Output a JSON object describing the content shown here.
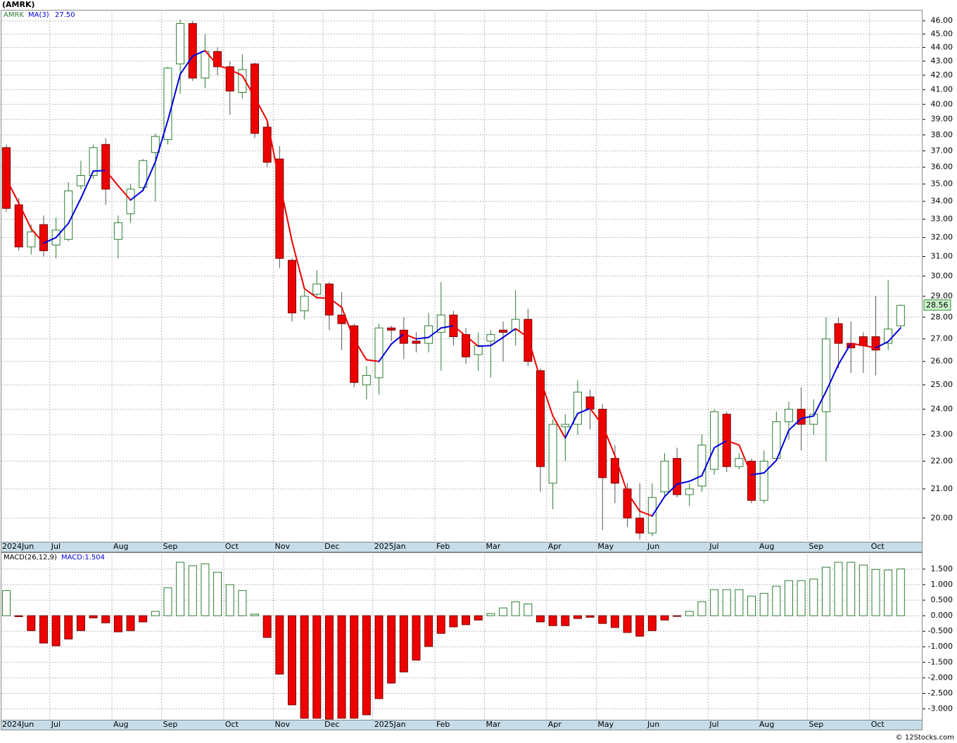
{
  "chart_data": [
    {
      "type": "candlestick",
      "title": "(AMRK)",
      "ticker": "AMRK",
      "categories": [
        "2024Jun",
        null,
        null,
        null,
        "Jul",
        null,
        null,
        null,
        null,
        "Aug",
        null,
        null,
        null,
        "Sep",
        null,
        null,
        null,
        null,
        "Oct",
        null,
        null,
        null,
        "Nov",
        null,
        null,
        null,
        "Dec",
        null,
        null,
        null,
        "2025Jan",
        null,
        null,
        null,
        null,
        "Feb",
        null,
        null,
        null,
        "Mar",
        null,
        null,
        null,
        null,
        "Apr",
        null,
        null,
        null,
        "May",
        null,
        null,
        null,
        "Jun",
        null,
        null,
        null,
        null,
        "Jul",
        null,
        null,
        null,
        "Aug",
        null,
        null,
        null,
        "Sep",
        null,
        null,
        null,
        null,
        "Oct",
        null,
        null
      ],
      "open": [
        37.2,
        33.8,
        31.5,
        32.7,
        31.6,
        31.9,
        34.9,
        35.5,
        37.4,
        31.9,
        33.3,
        34.8,
        36.9,
        37.7,
        42.8,
        45.8,
        41.8,
        43.7,
        42.6,
        40.8,
        42.8,
        38.5,
        36.5,
        30.8,
        28.3,
        29.1,
        29.6,
        28.1,
        27.6,
        25.0,
        25.3,
        27.5,
        27.4,
        26.9,
        26.8,
        27.3,
        28.1,
        27.2,
        26.3,
        26.9,
        27.4,
        27.4,
        27.9,
        25.6,
        21.2,
        23.3,
        23.4,
        24.5,
        24.0,
        22.1,
        21.0,
        20.0,
        19.5,
        20.9,
        22.1,
        20.8,
        21.1,
        21.7,
        23.8,
        21.8,
        22.0,
        20.6,
        22.1,
        23.5,
        24.0,
        23.4,
        23.9,
        27.7,
        26.8,
        27.1,
        27.1,
        26.8,
        27.6
      ],
      "high": [
        37.4,
        34.2,
        32.7,
        33.2,
        33.1,
        35.1,
        36.4,
        37.4,
        37.8,
        33.2,
        35.0,
        36.5,
        38.1,
        42.6,
        46.1,
        46.0,
        45.0,
        44.0,
        43.0,
        43.5,
        42.9,
        38.8,
        37.3,
        30.9,
        29.3,
        30.3,
        29.7,
        29.2,
        27.7,
        25.8,
        27.7,
        27.6,
        28.0,
        27.3,
        28.2,
        29.7,
        28.3,
        27.5,
        27.3,
        27.4,
        27.8,
        29.3,
        28.4,
        25.7,
        23.6,
        23.8,
        25.2,
        24.8,
        24.2,
        22.6,
        21.2,
        21.2,
        21.2,
        22.3,
        22.5,
        21.2,
        23.0,
        24.0,
        23.9,
        22.3,
        22.1,
        22.4,
        23.9,
        24.3,
        24.9,
        24.4,
        28.0,
        28.0,
        27.8,
        27.3,
        29.0,
        29.8,
        28.6
      ],
      "low": [
        33.4,
        31.3,
        31.1,
        31.0,
        30.9,
        31.8,
        34.7,
        35.3,
        33.8,
        30.9,
        32.8,
        34.6,
        34.0,
        37.4,
        40.7,
        41.6,
        41.1,
        42.0,
        39.3,
        40.4,
        37.8,
        36.0,
        30.4,
        27.8,
        27.9,
        29.0,
        27.4,
        26.5,
        24.9,
        24.4,
        24.6,
        26.9,
        26.1,
        26.4,
        26.4,
        25.6,
        26.7,
        25.9,
        25.6,
        25.3,
        26.0,
        26.7,
        25.8,
        20.9,
        20.3,
        22.0,
        23.0,
        23.2,
        19.6,
        20.5,
        19.7,
        19.3,
        19.4,
        20.7,
        20.7,
        20.4,
        20.9,
        21.5,
        21.6,
        21.7,
        20.5,
        20.5,
        22.0,
        22.8,
        22.4,
        23.0,
        22.0,
        25.7,
        25.5,
        25.5,
        25.4,
        26.5,
        27.5
      ],
      "close": [
        33.6,
        31.5,
        32.3,
        31.3,
        32.4,
        34.6,
        35.5,
        37.2,
        34.7,
        32.8,
        34.7,
        36.4,
        37.9,
        42.5,
        45.8,
        41.8,
        43.7,
        42.6,
        40.9,
        42.4,
        38.1,
        36.3,
        30.9,
        28.2,
        29.0,
        29.6,
        28.1,
        27.7,
        25.1,
        25.4,
        27.5,
        27.4,
        26.8,
        26.8,
        27.6,
        28.1,
        27.1,
        26.2,
        26.7,
        27.2,
        27.3,
        27.9,
        26.0,
        21.8,
        23.4,
        23.4,
        24.7,
        24.0,
        21.4,
        21.2,
        20.0,
        19.5,
        20.7,
        22.0,
        20.8,
        21.0,
        22.6,
        23.9,
        21.8,
        22.1,
        20.6,
        22.0,
        23.5,
        24.0,
        23.4,
        23.8,
        27.0,
        26.8,
        26.6,
        26.7,
        26.5,
        27.45,
        28.56
      ],
      "last_close_label": "28.56",
      "up_color": "#2e7d32",
      "down_color": "#ee0000",
      "ma": {
        "name": "MA(3)",
        "last_value_label": "27.50",
        "up_color": "#0000dd",
        "down_color": "#ee0000",
        "values": [
          35.3,
          33.9,
          32.47,
          31.7,
          32.0,
          32.77,
          34.17,
          35.77,
          35.8,
          34.9,
          34.07,
          34.63,
          36.33,
          38.93,
          42.07,
          43.37,
          43.77,
          42.7,
          42.4,
          41.97,
          40.47,
          38.93,
          35.1,
          31.8,
          29.37,
          28.93,
          28.9,
          28.47,
          26.97,
          26.07,
          26.0,
          26.77,
          27.23,
          27.0,
          27.07,
          27.5,
          27.6,
          27.13,
          26.67,
          26.7,
          27.07,
          27.47,
          27.07,
          25.23,
          23.73,
          22.87,
          23.83,
          24.03,
          23.37,
          22.2,
          20.87,
          20.23,
          20.07,
          20.73,
          21.17,
          21.27,
          21.47,
          22.5,
          22.77,
          22.6,
          21.5,
          21.57,
          22.03,
          23.17,
          23.63,
          23.73,
          24.73,
          25.87,
          26.8,
          26.7,
          26.6,
          26.88,
          27.5
        ]
      },
      "log_scale": true,
      "grid": true,
      "ylim": [
        19.22,
        46.86
      ],
      "yticks": [
        {
          "value": 20,
          "label": "20.00"
        },
        {
          "value": 21,
          "label": "21.00"
        },
        {
          "value": 22,
          "label": "22.00"
        },
        {
          "value": 23,
          "label": "23.00"
        },
        {
          "value": 24,
          "label": "24.00"
        },
        {
          "value": 25,
          "label": "25.00"
        },
        {
          "value": 26,
          "label": "26.00"
        },
        {
          "value": 27,
          "label": "27.00"
        },
        {
          "value": 28,
          "label": "28.00"
        },
        {
          "value": 29,
          "label": "29.00"
        },
        {
          "value": 30,
          "label": "30.00"
        },
        {
          "value": 31,
          "label": "31.00"
        },
        {
          "value": 32,
          "label": "32.00"
        },
        {
          "value": 33,
          "label": "33.00"
        },
        {
          "value": 34,
          "label": "34.00"
        },
        {
          "value": 35,
          "label": "35.00"
        },
        {
          "value": 36,
          "label": "36.00"
        },
        {
          "value": 37,
          "label": "37.00"
        },
        {
          "value": 38,
          "label": "38.00"
        },
        {
          "value": 39,
          "label": "39.00"
        },
        {
          "value": 40,
          "label": "40.00"
        },
        {
          "value": 41,
          "label": "41.00"
        },
        {
          "value": 42,
          "label": "42.00"
        },
        {
          "value": 43,
          "label": "43.00"
        },
        {
          "value": 44,
          "label": "44.00"
        },
        {
          "value": 45,
          "label": "45.00"
        },
        {
          "value": 46,
          "label": "46.00"
        }
      ]
    },
    {
      "type": "bar",
      "name": "MACD(26,12,9)",
      "value_label": "MACD:1.504",
      "values": [
        0.81,
        -0.03,
        -0.48,
        -0.88,
        -0.97,
        -0.75,
        -0.48,
        -0.07,
        -0.23,
        -0.52,
        -0.48,
        -0.2,
        0.14,
        0.9,
        1.72,
        1.61,
        1.67,
        1.4,
        1.0,
        0.81,
        0.05,
        -0.7,
        -1.88,
        -2.87,
        -3.3,
        -3.3,
        -3.33,
        -3.3,
        -3.3,
        -3.19,
        -2.67,
        -2.17,
        -1.81,
        -1.43,
        -0.99,
        -0.57,
        -0.36,
        -0.29,
        -0.14,
        0.07,
        0.25,
        0.45,
        0.38,
        -0.2,
        -0.32,
        -0.32,
        -0.09,
        -0.05,
        -0.25,
        -0.38,
        -0.54,
        -0.66,
        -0.48,
        -0.14,
        -0.02,
        0.14,
        0.45,
        0.84,
        0.84,
        0.84,
        0.63,
        0.72,
        0.95,
        1.13,
        1.13,
        1.18,
        1.56,
        1.72,
        1.72,
        1.63,
        1.49,
        1.47,
        1.504
      ],
      "up_color": "#2e7d32",
      "down_color": "#ee0000",
      "grid": true,
      "ylim": [
        -3.35,
        2.04
      ],
      "yticks": [
        {
          "value": -3,
          "label": "-3.000"
        },
        {
          "value": -2.5,
          "label": "-2.500"
        },
        {
          "value": -2,
          "label": "-2.000"
        },
        {
          "value": -1.5,
          "label": "-1.500"
        },
        {
          "value": -1,
          "label": "-1.000"
        },
        {
          "value": -0.5,
          "label": "-0.500"
        },
        {
          "value": 0,
          "label": "0.000"
        },
        {
          "value": 0.5,
          "label": "0.500"
        },
        {
          "value": 1,
          "label": "1.000"
        },
        {
          "value": 1.5,
          "label": "1.500"
        }
      ]
    }
  ],
  "footer": "© 12Stocks.com"
}
